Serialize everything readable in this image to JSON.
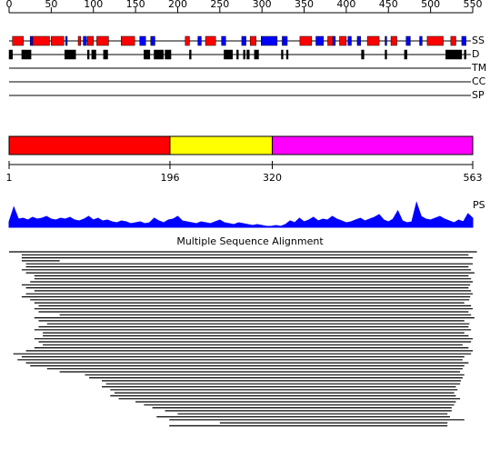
{
  "ruler": {
    "xlim": [
      0,
      550
    ],
    "ticks": [
      0,
      50,
      100,
      150,
      200,
      250,
      300,
      350,
      400,
      450,
      500,
      550
    ]
  },
  "tracks": [
    {
      "label": "SS",
      "segments": [
        {
          "kind": "helix",
          "range": [
            4,
            17
          ]
        },
        {
          "kind": "strand",
          "range": [
            25,
            28
          ]
        },
        {
          "kind": "helix",
          "range": [
            28,
            48
          ]
        },
        {
          "kind": "helix",
          "range": [
            50,
            65
          ]
        },
        {
          "kind": "strand",
          "range": [
            67,
            69
          ]
        },
        {
          "kind": "helix",
          "range": [
            82,
            85
          ]
        },
        {
          "kind": "strand",
          "range": [
            88,
            92
          ]
        },
        {
          "kind": "helix",
          "range": [
            93,
            100
          ]
        },
        {
          "kind": "helix",
          "range": [
            104,
            118
          ]
        },
        {
          "kind": "helix",
          "range": [
            133,
            149
          ]
        },
        {
          "kind": "strand",
          "range": [
            155,
            162
          ]
        },
        {
          "kind": "strand",
          "range": [
            168,
            173
          ]
        },
        {
          "kind": "helix",
          "range": [
            209,
            214
          ]
        },
        {
          "kind": "strand",
          "range": [
            224,
            228
          ]
        },
        {
          "kind": "helix",
          "range": [
            233,
            245
          ]
        },
        {
          "kind": "strand",
          "range": [
            252,
            257
          ]
        },
        {
          "kind": "strand",
          "range": [
            276,
            281
          ]
        },
        {
          "kind": "helix",
          "range": [
            286,
            293
          ]
        },
        {
          "kind": "strand",
          "range": [
            299,
            318
          ]
        },
        {
          "kind": "strand",
          "range": [
            324,
            330
          ]
        },
        {
          "kind": "helix",
          "range": [
            345,
            359
          ]
        },
        {
          "kind": "strand",
          "range": [
            364,
            373
          ]
        },
        {
          "kind": "helix",
          "range": [
            378,
            384
          ]
        },
        {
          "kind": "strand",
          "range": [
            384,
            387
          ]
        },
        {
          "kind": "helix",
          "range": [
            392,
            400
          ]
        },
        {
          "kind": "strand",
          "range": [
            402,
            406
          ]
        },
        {
          "kind": "strand",
          "range": [
            413,
            417
          ]
        },
        {
          "kind": "helix",
          "range": [
            425,
            439
          ]
        },
        {
          "kind": "strand",
          "range": [
            446,
            448
          ]
        },
        {
          "kind": "helix",
          "range": [
            453,
            460
          ]
        },
        {
          "kind": "strand",
          "range": [
            471,
            476
          ]
        },
        {
          "kind": "strand",
          "range": [
            487,
            490
          ]
        },
        {
          "kind": "helix",
          "range": [
            496,
            515
          ]
        },
        {
          "kind": "helix",
          "range": [
            524,
            530
          ]
        },
        {
          "kind": "strand",
          "range": [
            537,
            542
          ]
        }
      ]
    },
    {
      "label": "D",
      "segments": [
        {
          "kind": "disorder",
          "range": [
            0,
            4
          ]
        },
        {
          "kind": "disorder",
          "range": [
            15,
            26
          ]
        },
        {
          "kind": "disorder",
          "range": [
            66,
            79
          ]
        },
        {
          "kind": "disorder",
          "range": [
            93,
            95
          ]
        },
        {
          "kind": "disorder",
          "range": [
            98,
            103
          ]
        },
        {
          "kind": "disorder",
          "range": [
            112,
            117
          ]
        },
        {
          "kind": "disorder",
          "range": [
            160,
            167
          ]
        },
        {
          "kind": "disorder",
          "range": [
            172,
            183
          ]
        },
        {
          "kind": "disorder",
          "range": [
            185,
            192
          ]
        },
        {
          "kind": "disorder",
          "range": [
            214,
            216
          ]
        },
        {
          "kind": "disorder",
          "range": [
            255,
            265
          ]
        },
        {
          "kind": "disorder",
          "range": [
            270,
            272
          ]
        },
        {
          "kind": "disorder",
          "range": [
            278,
            280
          ]
        },
        {
          "kind": "disorder",
          "range": [
            282,
            285
          ]
        },
        {
          "kind": "disorder",
          "range": [
            291,
            296
          ]
        },
        {
          "kind": "disorder",
          "range": [
            323,
            325
          ]
        },
        {
          "kind": "disorder",
          "range": [
            329,
            331
          ]
        },
        {
          "kind": "disorder",
          "range": [
            418,
            421
          ]
        },
        {
          "kind": "disorder",
          "range": [
            446,
            448
          ]
        },
        {
          "kind": "disorder",
          "range": [
            469,
            472
          ]
        },
        {
          "kind": "disorder",
          "range": [
            518,
            537
          ]
        },
        {
          "kind": "disorder",
          "range": [
            540,
            542
          ]
        }
      ]
    },
    {
      "label": "TM",
      "segments": []
    },
    {
      "label": "CC",
      "segments": []
    },
    {
      "label": "SP",
      "segments": []
    }
  ],
  "segment_colors": {
    "helix": "#ff0000",
    "strand": "#0000ff",
    "disorder": "#000000"
  },
  "domains": {
    "xlim": [
      1,
      563
    ],
    "boundaries": [
      1,
      196,
      320,
      563
    ],
    "colors": [
      "#ff0000",
      "#ffff00",
      "#ff00ff"
    ]
  },
  "ps": {
    "label": "PS",
    "color": "#0000ff",
    "ylim": [
      0,
      30
    ],
    "values": [
      6,
      22,
      9,
      10,
      8,
      11,
      9,
      10,
      12,
      9,
      8,
      10,
      9,
      11,
      8,
      7,
      9,
      12,
      8,
      10,
      7,
      8,
      6,
      5,
      7,
      6,
      4,
      5,
      6,
      4,
      5,
      10,
      7,
      5,
      8,
      9,
      12,
      7,
      6,
      5,
      4,
      6,
      5,
      4,
      6,
      8,
      5,
      4,
      3,
      5,
      4,
      3,
      2,
      3,
      2,
      1,
      1,
      2,
      1,
      3,
      7,
      5,
      10,
      6,
      8,
      11,
      7,
      9,
      8,
      12,
      9,
      7,
      5,
      6,
      8,
      10,
      7,
      9,
      11,
      14,
      8,
      6,
      9,
      18,
      7,
      5,
      6,
      27,
      12,
      9,
      8,
      10,
      12,
      9,
      7,
      5,
      8,
      6,
      15,
      10
    ]
  },
  "alignment": {
    "title": "Multiple Sequence Alignment",
    "xlim": [
      0,
      550
    ],
    "rows": [
      [
        0,
        555
      ],
      [
        15,
        545
      ],
      [
        15,
        550
      ],
      [
        15,
        60
      ],
      [
        20,
        550
      ],
      [
        20,
        545
      ],
      [
        15,
        548
      ],
      [
        20,
        552
      ],
      [
        30,
        545
      ],
      [
        30,
        548
      ],
      [
        25,
        550
      ],
      [
        15,
        547
      ],
      [
        20,
        545
      ],
      [
        30,
        548
      ],
      [
        20,
        550
      ],
      [
        15,
        547
      ],
      [
        25,
        546
      ],
      [
        30,
        540
      ],
      [
        35,
        548
      ],
      [
        30,
        550
      ],
      [
        35,
        545
      ],
      [
        60,
        548
      ],
      [
        30,
        552
      ],
      [
        35,
        540
      ],
      [
        45,
        546
      ],
      [
        35,
        545
      ],
      [
        30,
        548
      ],
      [
        40,
        540
      ],
      [
        40,
        545
      ],
      [
        30,
        550
      ],
      [
        35,
        548
      ],
      [
        40,
        538
      ],
      [
        30,
        545
      ],
      [
        20,
        550
      ],
      [
        5,
        548
      ],
      [
        15,
        540
      ],
      [
        10,
        538
      ],
      [
        20,
        545
      ],
      [
        25,
        540
      ],
      [
        45,
        538
      ],
      [
        60,
        535
      ],
      [
        90,
        540
      ],
      [
        95,
        538
      ],
      [
        110,
        536
      ],
      [
        115,
        535
      ],
      [
        110,
        530
      ],
      [
        120,
        532
      ],
      [
        125,
        528
      ],
      [
        120,
        530
      ],
      [
        130,
        535
      ],
      [
        150,
        530
      ],
      [
        160,
        528
      ],
      [
        170,
        525
      ],
      [
        185,
        525
      ],
      [
        200,
        520
      ],
      [
        175,
        523
      ],
      [
        190,
        540
      ],
      [
        250,
        520
      ],
      [
        190,
        520
      ]
    ]
  }
}
